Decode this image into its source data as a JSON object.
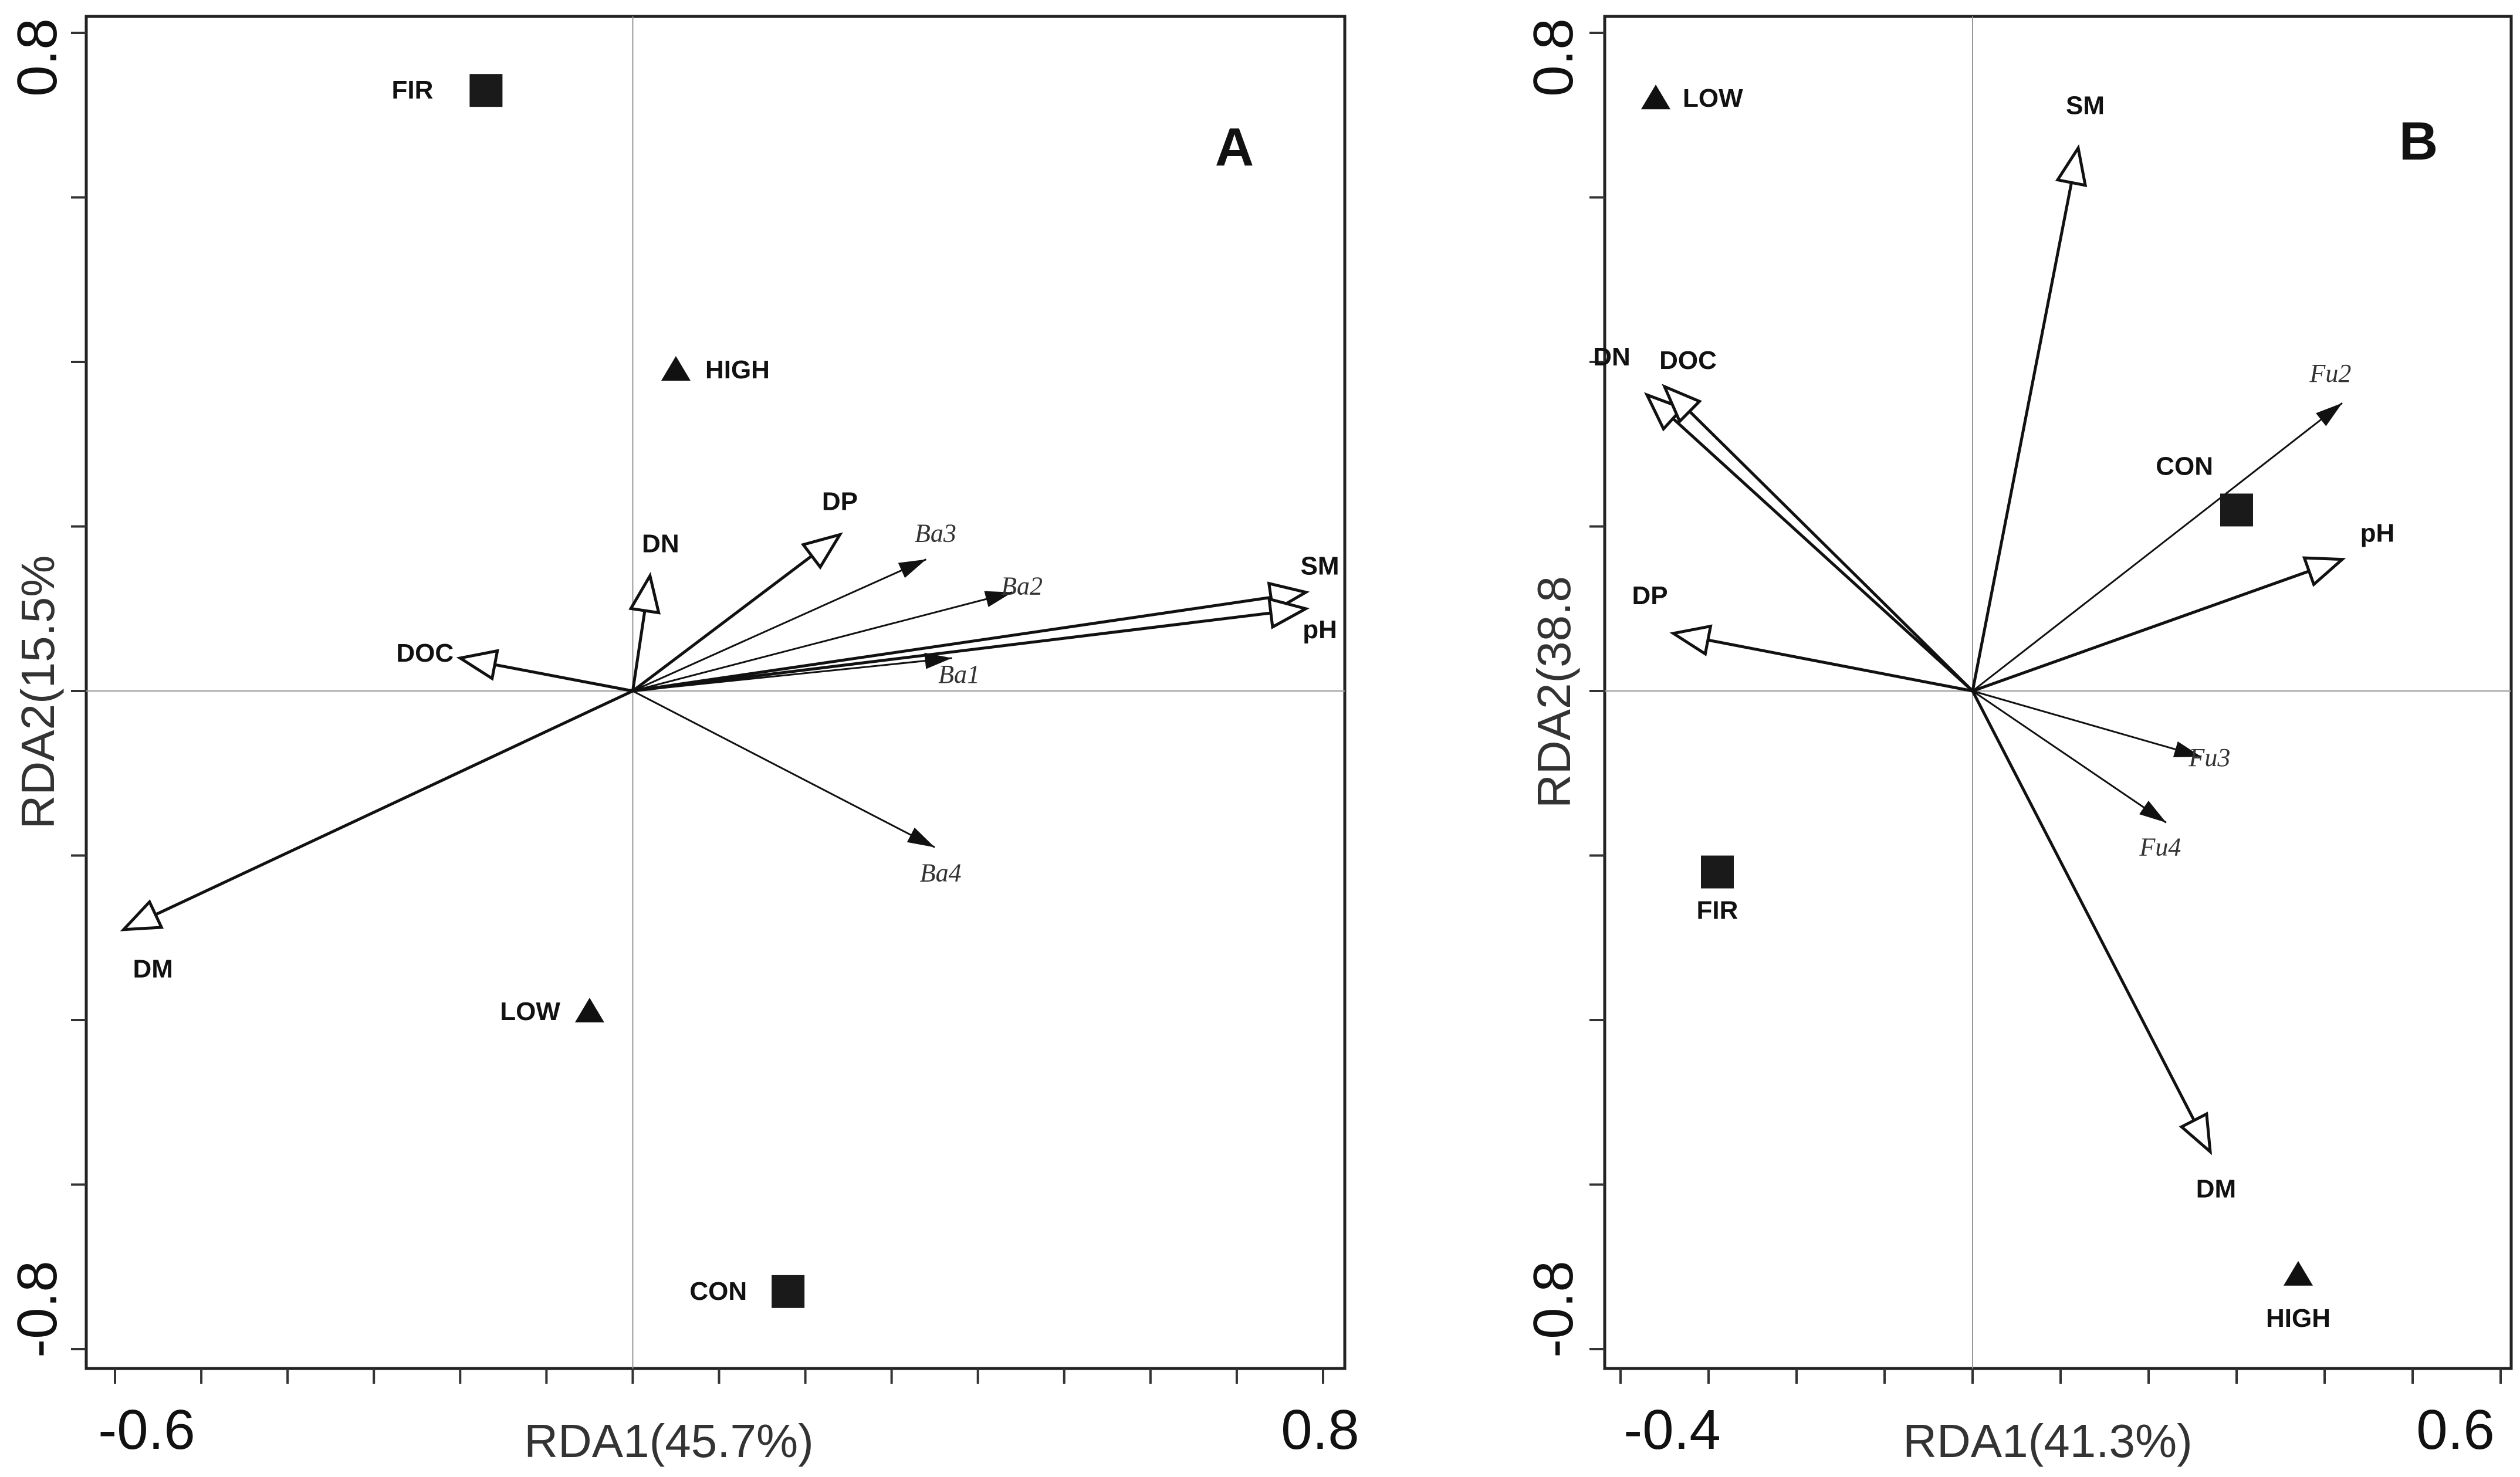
{
  "chart_data": [
    {
      "type": "scatter",
      "subtype": "rda-biplot",
      "panel": "A",
      "xlabel": "RDA1(45.7%)",
      "ylabel": "RDA2(15.5%",
      "x_ticks": {
        "min": "-0.6",
        "max": "0.8"
      },
      "y_ticks": {
        "min": "-0.8",
        "max": "0.8"
      },
      "xlim": [
        -0.6,
        0.8
      ],
      "ylim": [
        -0.8,
        0.8
      ],
      "env_vectors": [
        {
          "name": "SM",
          "x": 0.78,
          "y": 0.12
        },
        {
          "name": "pH",
          "x": 0.78,
          "y": 0.1
        },
        {
          "name": "DP",
          "x": 0.24,
          "y": 0.19
        },
        {
          "name": "DN",
          "x": 0.02,
          "y": 0.14
        },
        {
          "name": "DOC",
          "x": -0.2,
          "y": 0.04
        },
        {
          "name": "DM",
          "x": -0.59,
          "y": -0.29
        }
      ],
      "species_vectors": [
        {
          "name": "Ba3",
          "x": 0.34,
          "y": 0.16
        },
        {
          "name": "Ba2",
          "x": 0.44,
          "y": 0.12
        },
        {
          "name": "Ba1",
          "x": 0.37,
          "y": 0.04
        },
        {
          "name": "Ba4",
          "x": 0.35,
          "y": -0.19
        }
      ],
      "sites": [
        {
          "name": "FIR",
          "marker": "square",
          "x": -0.17,
          "y": 0.73
        },
        {
          "name": "HIGH",
          "marker": "triangle",
          "x": 0.05,
          "y": 0.39
        },
        {
          "name": "LOW",
          "marker": "triangle",
          "x": -0.05,
          "y": -0.39
        },
        {
          "name": "CON",
          "marker": "square",
          "x": 0.18,
          "y": -0.73
        }
      ]
    },
    {
      "type": "scatter",
      "subtype": "rda-biplot",
      "panel": "B",
      "xlabel": "RDA1(41.3%)",
      "ylabel": "RDA2(38.8",
      "x_ticks": {
        "min": "-0.4",
        "max": "0.6"
      },
      "y_ticks": {
        "min": "-0.8",
        "max": "0.8"
      },
      "xlim": [
        -0.4,
        0.6
      ],
      "ylim": [
        -0.8,
        0.8
      ],
      "env_vectors": [
        {
          "name": "SM",
          "x": 0.12,
          "y": 0.66
        },
        {
          "name": "DN",
          "x": -0.37,
          "y": 0.36
        },
        {
          "name": "DOC",
          "x": -0.35,
          "y": 0.37
        },
        {
          "name": "pH",
          "x": 0.42,
          "y": 0.16
        },
        {
          "name": "DP",
          "x": -0.34,
          "y": 0.07
        },
        {
          "name": "DM",
          "x": 0.27,
          "y": -0.56
        }
      ],
      "species_vectors": [
        {
          "name": "Fu2",
          "x": 0.42,
          "y": 0.35
        },
        {
          "name": "Fu3",
          "x": 0.26,
          "y": -0.08
        },
        {
          "name": "Fu4",
          "x": 0.22,
          "y": -0.16
        }
      ],
      "sites": [
        {
          "name": "LOW",
          "marker": "triangle",
          "x": -0.36,
          "y": 0.72
        },
        {
          "name": "CON",
          "marker": "square",
          "x": 0.3,
          "y": 0.22
        },
        {
          "name": "FIR",
          "marker": "square",
          "x": -0.29,
          "y": -0.22
        },
        {
          "name": "HIGH",
          "marker": "triangle",
          "x": 0.37,
          "y": -0.71
        }
      ]
    }
  ]
}
